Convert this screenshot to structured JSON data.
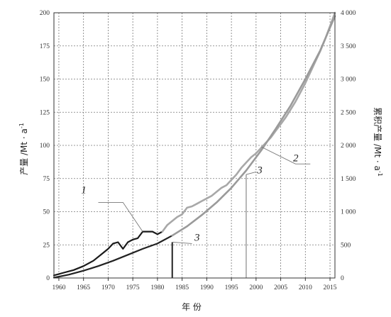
{
  "chart_data": {
    "type": "line",
    "xlabel": "年 份",
    "ylabel_left": "产量 /Mt · a",
    "ylabel_left_sup": "-1",
    "ylabel_right": "累积产量 /Mt · a",
    "ylabel_right_sup": "-1",
    "xlim": [
      1959,
      2016
    ],
    "x_ticks": [
      1960,
      1965,
      1970,
      1975,
      1980,
      1985,
      1990,
      1995,
      2000,
      2005,
      2010,
      2015
    ],
    "ylim_left": [
      0,
      200
    ],
    "y_ticks_left": [
      0,
      25,
      50,
      75,
      100,
      125,
      150,
      175,
      200
    ],
    "ylim_right": [
      0,
      4000
    ],
    "y_ticks_right": [
      0,
      500,
      1000,
      1500,
      2000,
      2500,
      3000,
      3500,
      4000
    ],
    "y_tick_labels_right": [
      "0",
      "500",
      "1 000",
      "1 500",
      "2 000",
      "2 500",
      "3 000",
      "3 500",
      "4 000"
    ],
    "grid": true,
    "series": [
      {
        "name": "1",
        "axis": "left",
        "color": "#1a1a1a",
        "x": [
          1959,
          1961,
          1963,
          1965,
          1967,
          1969,
          1970,
          1971,
          1972,
          1973,
          1974,
          1975,
          1976,
          1977,
          1978,
          1979,
          1980,
          1981
        ],
        "y": [
          2,
          4,
          6,
          9,
          13,
          19,
          22,
          26,
          27,
          22,
          27,
          29,
          30,
          35,
          35,
          35,
          33,
          35
        ]
      },
      {
        "name": "1",
        "axis": "left",
        "color": "#a8a8a8",
        "x": [
          1981,
          1982,
          1983,
          1984,
          1985,
          1986,
          1987,
          1988,
          1989,
          1990,
          1991,
          1992,
          1993,
          1994,
          1995,
          1996,
          1997,
          1998,
          1999,
          2000,
          2001,
          2002,
          2003,
          2004,
          2005,
          2006,
          2007,
          2008,
          2009,
          2010,
          2011,
          2012,
          2013,
          2014,
          2015,
          2016
        ],
        "y": [
          35,
          40,
          43,
          46,
          48,
          53,
          54,
          56,
          58,
          60,
          62,
          65,
          68,
          70,
          74,
          78,
          83,
          87,
          91,
          94,
          98,
          102,
          106,
          111,
          116,
          121,
          127,
          133,
          140,
          147,
          155,
          163,
          171,
          180,
          190,
          200
        ]
      },
      {
        "name": "3",
        "axis": "right",
        "color": "#222222",
        "x": [
          1959,
          1962,
          1965,
          1968,
          1971,
          1974,
          1977,
          1980,
          1983
        ],
        "y": [
          5,
          50,
          110,
          180,
          260,
          350,
          440,
          520,
          640
        ]
      },
      {
        "name": "3",
        "axis": "right",
        "color": "#9a9a9a",
        "x": [
          1983,
          1986,
          1989,
          1992,
          1995,
          1998,
          2001,
          2004,
          2007,
          2010,
          2013,
          2016
        ],
        "y": [
          640,
          780,
          950,
          1140,
          1360,
          1620,
          1920,
          2250,
          2600,
          3000,
          3430,
          3950
        ]
      }
    ],
    "annotations": [
      {
        "text": "1",
        "x": 1977,
        "y_left": 40
      },
      {
        "text": "2",
        "x": 2005,
        "y_left": 94
      },
      {
        "text": "3",
        "x": 2000,
        "y_left": 80
      },
      {
        "text": "3",
        "x": 1988,
        "y_left": 31
      }
    ],
    "markers": [
      {
        "x": 1983,
        "from_y_left": 0,
        "to_y_left": 27
      },
      {
        "x": 1998,
        "from_y_left": 0,
        "to_y_left": 78
      }
    ]
  }
}
